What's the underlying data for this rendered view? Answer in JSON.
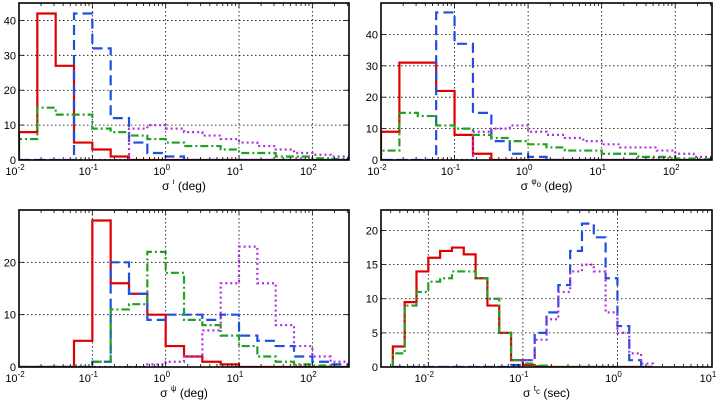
{
  "chart_data": [
    {
      "type": "histogram",
      "title": "",
      "xscale": "log",
      "xlim": [
        0.01,
        316
      ],
      "ylim": [
        0,
        45
      ],
      "xticks": [
        0.01,
        0.1,
        1,
        10,
        100
      ],
      "yticks": [
        0,
        10,
        20,
        30,
        40
      ],
      "xlabel": {
        "sym": "σ",
        "sup": "ι",
        "unit": " (deg)"
      },
      "bin_edges_log10": [
        -2,
        -1.75,
        -1.5,
        -1.25,
        -1,
        -0.75,
        -0.5,
        -0.25,
        0,
        0.25,
        0.5,
        0.75,
        1,
        1.25,
        1.5,
        1.75,
        2,
        2.25,
        2.5
      ],
      "series": [
        {
          "name": "red",
          "color": "#e00000",
          "dash": "",
          "values": [
            8,
            42,
            27,
            5,
            3,
            1,
            0,
            0,
            0,
            0,
            0,
            0,
            0,
            0,
            0,
            0,
            0,
            0
          ]
        },
        {
          "name": "blue",
          "color": "#1f4fe0",
          "dash": "10,5",
          "values": [
            0,
            0,
            0,
            42,
            32,
            12,
            5,
            2,
            1,
            0,
            0,
            0,
            0,
            0,
            0,
            0,
            0,
            0
          ]
        },
        {
          "name": "green",
          "color": "#22a022",
          "dash": "8,3,2,3",
          "values": [
            6,
            15,
            13,
            13,
            9,
            8,
            7,
            6,
            5,
            4,
            4,
            3,
            2,
            2,
            1,
            1,
            0.5,
            0.3
          ]
        },
        {
          "name": "magenta",
          "color": "#b030e0",
          "dash": "2,3",
          "values": [
            0,
            0,
            0,
            0,
            0,
            0,
            9,
            10,
            9,
            8,
            7,
            6,
            5,
            4,
            3,
            2,
            1.5,
            1
          ]
        }
      ]
    },
    {
      "type": "histogram",
      "title": "",
      "xscale": "log",
      "xlim": [
        0.01,
        316
      ],
      "ylim": [
        0,
        50
      ],
      "xticks": [
        0.01,
        0.1,
        1,
        10,
        100
      ],
      "yticks": [
        0,
        10,
        20,
        30,
        40
      ],
      "xlabel": {
        "sym": "σ",
        "sup": "φ",
        "sub": "o",
        "unit": " (deg)"
      },
      "bin_edges_log10": [
        -2,
        -1.75,
        -1.5,
        -1.25,
        -1,
        -0.75,
        -0.5,
        -0.25,
        0,
        0.25,
        0.5,
        0.75,
        1,
        1.25,
        1.5,
        1.75,
        2,
        2.25,
        2.5
      ],
      "series": [
        {
          "name": "red",
          "color": "#e00000",
          "dash": "",
          "values": [
            9,
            31,
            31,
            22,
            8,
            2,
            0,
            0,
            0,
            0,
            0,
            0,
            0,
            0,
            0,
            0,
            0,
            0
          ]
        },
        {
          "name": "blue",
          "color": "#1f4fe0",
          "dash": "10,5",
          "values": [
            0,
            0,
            0,
            47,
            37,
            15,
            6,
            2,
            1,
            0,
            0,
            0,
            0,
            0,
            0,
            0,
            0,
            0
          ]
        },
        {
          "name": "green",
          "color": "#22a022",
          "dash": "8,3,2,3",
          "values": [
            3,
            15,
            14,
            11,
            10,
            8,
            7,
            6,
            5,
            4,
            3,
            3,
            2,
            2,
            1,
            1,
            0.5,
            0.3
          ]
        },
        {
          "name": "magenta",
          "color": "#b030e0",
          "dash": "2,3",
          "values": [
            0,
            0,
            0,
            0,
            0,
            9,
            10,
            11,
            9,
            8,
            7,
            6,
            5,
            4,
            4,
            3,
            2,
            1
          ]
        }
      ]
    },
    {
      "type": "histogram",
      "title": "",
      "xscale": "log",
      "xlim": [
        0.01,
        316
      ],
      "ylim": [
        0,
        30
      ],
      "xticks": [
        0.01,
        0.1,
        1,
        10,
        100
      ],
      "yticks": [
        0,
        10,
        20
      ],
      "xlabel": {
        "sym": "σ",
        "sup": "ψ",
        "unit": " (deg)"
      },
      "bin_edges_log10": [
        -2,
        -1.75,
        -1.5,
        -1.25,
        -1,
        -0.75,
        -0.5,
        -0.25,
        0,
        0.25,
        0.5,
        0.75,
        1,
        1.25,
        1.5,
        1.75,
        2,
        2.25,
        2.5
      ],
      "series": [
        {
          "name": "red",
          "color": "#e00000",
          "dash": "",
          "values": [
            0,
            0,
            0,
            5,
            28,
            16,
            14,
            10,
            4,
            2,
            1,
            0.5,
            0,
            0,
            0,
            0,
            0,
            0
          ]
        },
        {
          "name": "blue",
          "color": "#1f4fe0",
          "dash": "10,5",
          "values": [
            0,
            0,
            0,
            0,
            1,
            20,
            14,
            9,
            10,
            10,
            9,
            10,
            6,
            5,
            4,
            2,
            1,
            0.5
          ]
        },
        {
          "name": "green",
          "color": "#22a022",
          "dash": "8,3,2,3",
          "values": [
            0,
            0,
            0,
            0,
            1,
            11,
            12,
            22,
            18,
            9,
            8,
            6,
            4,
            2,
            1,
            0.5,
            0.3,
            0
          ]
        },
        {
          "name": "magenta",
          "color": "#b030e0",
          "dash": "2,3",
          "values": [
            0,
            0,
            0,
            0,
            0,
            0,
            0,
            0.5,
            1,
            2,
            7,
            16,
            23,
            16,
            8,
            4,
            2,
            1
          ]
        }
      ]
    },
    {
      "type": "histogram",
      "title": "",
      "xscale": "log",
      "xlim": [
        0.00316,
        10
      ],
      "ylim": [
        0,
        23
      ],
      "xticks": [
        0.01,
        0.1,
        1,
        10
      ],
      "yticks": [
        0,
        5,
        10,
        15,
        20
      ],
      "xlabel": {
        "sym": "σ",
        "sup": "t",
        "sub": "c",
        "unit": " (sec)"
      },
      "bin_edges_log10": [
        -2.375,
        -2.25,
        -2.125,
        -2,
        -1.875,
        -1.75,
        -1.625,
        -1.5,
        -1.375,
        -1.25,
        -1.125,
        -1,
        -0.875,
        -0.75,
        -0.625,
        -0.5,
        -0.375,
        -0.25,
        -0.125,
        0,
        0.125,
        0.25,
        0.375
      ],
      "series": [
        {
          "name": "red",
          "color": "#e00000",
          "dash": "",
          "values": [
            3,
            9.5,
            14,
            16,
            17,
            17.5,
            16.5,
            13,
            9,
            5,
            1,
            0.3,
            0.1,
            0,
            0,
            0,
            0,
            0,
            0,
            0,
            0,
            0
          ]
        },
        {
          "name": "blue",
          "color": "#1f4fe0",
          "dash": "10,5",
          "values": [
            0,
            0,
            0,
            0,
            0,
            0,
            0,
            0,
            0,
            0,
            0.3,
            1,
            5,
            8,
            12,
            17,
            21,
            19,
            13,
            6,
            1,
            0
          ]
        },
        {
          "name": "green",
          "color": "#22a022",
          "dash": "8,3,2,3",
          "values": [
            2,
            9,
            11,
            12.5,
            13,
            14,
            14,
            13,
            10,
            5,
            1,
            0.5,
            0.2,
            0,
            0,
            0,
            0,
            0,
            0,
            0,
            0,
            0
          ]
        },
        {
          "name": "magenta",
          "color": "#b030e0",
          "dash": "2,3",
          "values": [
            0,
            0,
            0,
            0,
            0,
            0,
            0,
            0,
            0,
            0,
            0,
            1,
            4,
            7,
            11,
            14,
            15,
            14,
            8,
            5,
            2,
            0.5
          ]
        }
      ]
    }
  ]
}
